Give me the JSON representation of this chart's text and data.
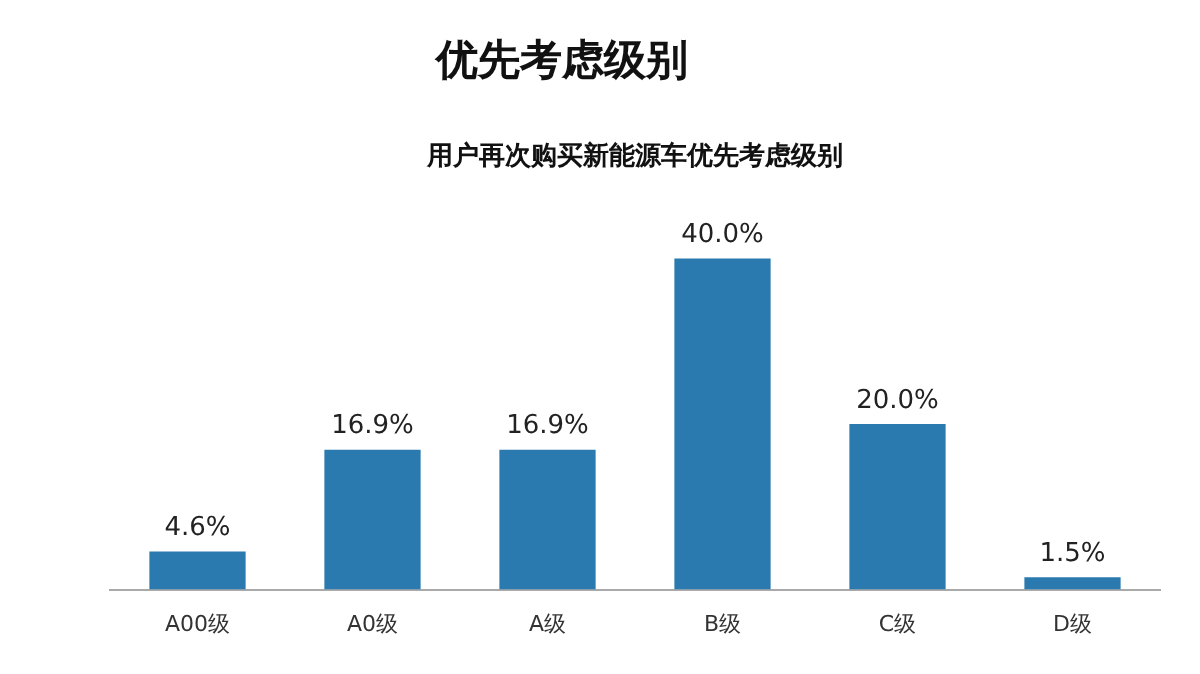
{
  "chart_data": {
    "type": "bar",
    "title": "优先考虑级别",
    "subtitle": "用户再次购买新能源车优先考虑级别",
    "categories": [
      "A00级",
      "A0级",
      "A级",
      "B级",
      "C级",
      "D级"
    ],
    "values": [
      4.6,
      16.9,
      16.9,
      40.0,
      20.0,
      1.5
    ],
    "value_labels": [
      "4.6%",
      "16.9%",
      "16.9%",
      "40.0%",
      "20.0%",
      "1.5%"
    ],
    "color": "#2a7ab0",
    "grid": false,
    "legend": false,
    "tick_labels": "x"
  }
}
